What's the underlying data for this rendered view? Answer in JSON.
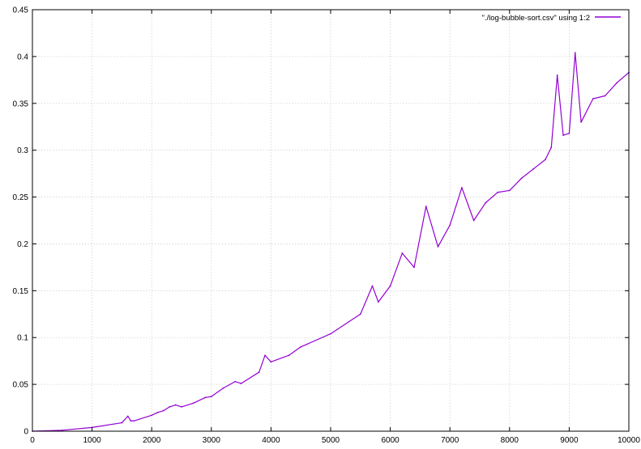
{
  "chart_data": {
    "type": "line",
    "title": "",
    "xlabel": "",
    "ylabel": "",
    "xlim": [
      0,
      10000
    ],
    "ylim": [
      0,
      0.45
    ],
    "x_ticks": [
      0,
      1000,
      2000,
      3000,
      4000,
      5000,
      6000,
      7000,
      8000,
      9000,
      10000
    ],
    "x_tick_labels": [
      "0",
      "1000",
      "2000",
      "3000",
      "4000",
      "5000",
      "6000",
      "7000",
      "8000",
      "9000",
      "10000"
    ],
    "y_ticks": [
      0,
      0.05,
      0.1,
      0.15,
      0.2,
      0.25,
      0.3,
      0.35,
      0.4,
      0.45
    ],
    "y_tick_labels": [
      "0",
      "0.05",
      "0.1",
      "0.15",
      "0.2",
      "0.25",
      "0.3",
      "0.35",
      "0.4",
      "0.45"
    ],
    "grid": true,
    "legend": {
      "position": "top-right",
      "entries": [
        {
          "label": "\"./log-bubble-sort.csv\" using 1:2",
          "color": "#9400d3"
        }
      ]
    },
    "series": [
      {
        "name": "\"./log-bubble-sort.csv\" using 1:2",
        "color": "#9400d3",
        "x": [
          0,
          500,
          1000,
          1500,
          1600,
          1650,
          1700,
          2000,
          2100,
          2200,
          2300,
          2400,
          2500,
          2700,
          2900,
          3000,
          3200,
          3400,
          3500,
          3800,
          3900,
          4000,
          4300,
          4500,
          5000,
          5500,
          5700,
          5800,
          6000,
          6200,
          6400,
          6600,
          6800,
          7000,
          7200,
          7400,
          7600,
          7800,
          8000,
          8200,
          8400,
          8600,
          8700,
          8800,
          8900,
          9000,
          9100,
          9200,
          9400,
          9600,
          9800,
          10000
        ],
        "y": [
          0,
          0.001,
          0.004,
          0.009,
          0.016,
          0.011,
          0.011,
          0.017,
          0.02,
          0.022,
          0.026,
          0.028,
          0.026,
          0.03,
          0.036,
          0.037,
          0.046,
          0.053,
          0.051,
          0.063,
          0.081,
          0.074,
          0.081,
          0.09,
          0.104,
          0.125,
          0.155,
          0.138,
          0.155,
          0.19,
          0.175,
          0.24,
          0.197,
          0.22,
          0.26,
          0.225,
          0.244,
          0.255,
          0.257,
          0.27,
          0.28,
          0.29,
          0.303,
          0.38,
          0.316,
          0.318,
          0.404,
          0.33,
          0.355,
          0.358,
          0.372,
          0.383
        ]
      }
    ]
  }
}
